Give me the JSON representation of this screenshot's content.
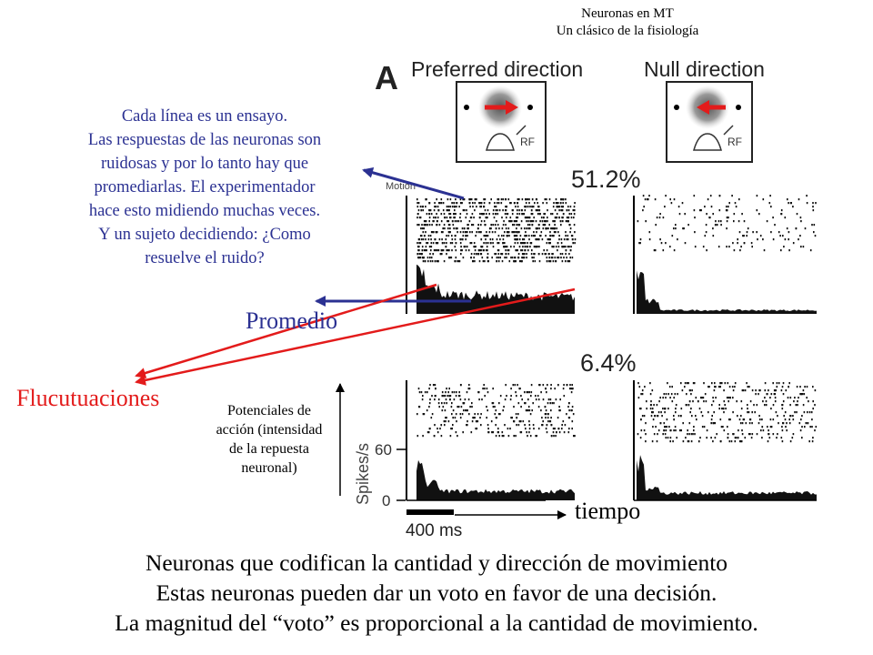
{
  "header": {
    "line1": "Neuronas en MT",
    "line2": "Un clásico de la fisiología"
  },
  "figure": {
    "panel_letter": "A",
    "preferred_label": "Preferred direction",
    "null_label": "Null direction",
    "coherence_high": "51.2%",
    "coherence_low": "6.4%",
    "rf_label": "RF",
    "y_axis_label": "Spikes/s",
    "tick_60": "60",
    "tick_0": "0",
    "scale_bar_label": "400 ms",
    "raster_label": "Motion"
  },
  "annotation": {
    "lines": [
      "Cada línea es un ensayo.",
      "Las respuestas de las neuronas son",
      "ruidosas y por lo tanto hay que",
      "promediarlas. El experimentador",
      "hace esto midiendo muchas veces.",
      "Y un sujeto decidiendo: ¿Como",
      "resuelve el ruido?"
    ]
  },
  "labels": {
    "promedio": "Promedio",
    "fluctuaciones": "Flucutuaciones",
    "potenciales": [
      "Potenciales de",
      "acción (intensidad",
      "de la repuesta",
      "neuronal)"
    ],
    "tiempo": "tiempo"
  },
  "bottom_text": [
    "Neuronas que codifican la cantidad y dirección de movimiento",
    "Estas neuronas pueden  dar un voto en favor de una decisión.",
    "La magnitud del “voto” es proporcional a la cantidad de movimiento."
  ],
  "colors": {
    "annotation": "#2b3192",
    "fluct": "#e31b1b",
    "motion_arrow": "#e31b1b"
  }
}
